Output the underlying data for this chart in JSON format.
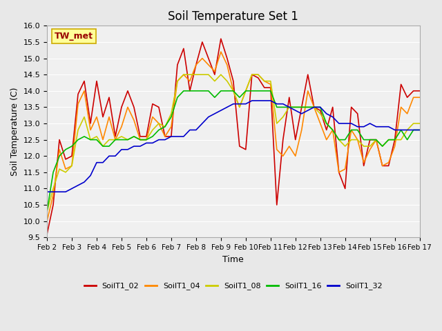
{
  "title": "Soil Temperature Set 1",
  "xlabel": "Time",
  "ylabel": "Soil Temperature (C)",
  "ylim": [
    9.5,
    16.0
  ],
  "annotation": "TW_met",
  "series": {
    "SoilT1_02": {
      "color": "#cc0000",
      "x": [
        2,
        2.25,
        2.5,
        2.75,
        3,
        3.25,
        3.5,
        3.75,
        4,
        4.25,
        4.5,
        4.75,
        5,
        5.25,
        5.5,
        5.75,
        6,
        6.25,
        6.5,
        6.75,
        7,
        7.25,
        7.5,
        7.75,
        8,
        8.25,
        8.5,
        8.75,
        9,
        9.25,
        9.5,
        9.75,
        10,
        10.25,
        10.5,
        10.75,
        11,
        11.25,
        11.5,
        11.75,
        12,
        12.25,
        12.5,
        12.75,
        13,
        13.25,
        13.5,
        13.75,
        14,
        14.25,
        14.5,
        14.75,
        15,
        15.25,
        15.5,
        15.75,
        16,
        16.25,
        16.5,
        16.75,
        17
      ],
      "y": [
        9.6,
        10.5,
        12.5,
        11.9,
        12.0,
        13.9,
        14.3,
        13.0,
        14.3,
        13.2,
        13.8,
        12.6,
        13.5,
        14.0,
        13.5,
        12.6,
        12.6,
        13.6,
        13.5,
        12.6,
        12.6,
        14.8,
        15.3,
        14.0,
        14.8,
        15.5,
        15.0,
        14.5,
        15.6,
        15.0,
        14.3,
        12.3,
        12.2,
        14.5,
        14.4,
        14.1,
        14.1,
        10.5,
        12.5,
        13.8,
        12.5,
        13.5,
        14.5,
        13.5,
        13.4,
        12.8,
        13.5,
        11.5,
        11.0,
        13.5,
        13.3,
        11.7,
        12.5,
        12.5,
        11.7,
        11.7,
        12.5,
        14.2,
        13.8,
        14.0,
        14.0
      ]
    },
    "SoilT1_04": {
      "color": "#ff8800",
      "x": [
        2,
        2.25,
        2.5,
        2.75,
        3,
        3.25,
        3.5,
        3.75,
        4,
        4.25,
        4.5,
        4.75,
        5,
        5.25,
        5.5,
        5.75,
        6,
        6.25,
        6.5,
        6.75,
        7,
        7.25,
        7.5,
        7.75,
        8,
        8.25,
        8.5,
        8.75,
        9,
        9.25,
        9.5,
        9.75,
        10,
        10.25,
        10.5,
        10.75,
        11,
        11.25,
        11.5,
        11.75,
        12,
        12.25,
        12.5,
        12.75,
        13,
        13.25,
        13.5,
        13.75,
        14,
        14.25,
        14.5,
        14.75,
        15,
        15.25,
        15.5,
        15.75,
        16,
        16.25,
        16.5,
        16.75,
        17
      ],
      "y": [
        10.0,
        10.8,
        12.2,
        11.6,
        11.7,
        13.6,
        14.0,
        12.8,
        13.2,
        12.5,
        13.2,
        12.5,
        12.9,
        13.5,
        13.1,
        12.5,
        12.5,
        13.2,
        13.0,
        12.6,
        12.9,
        14.3,
        14.5,
        14.3,
        14.8,
        15.0,
        14.8,
        14.6,
        15.2,
        14.8,
        14.0,
        13.5,
        14.0,
        14.5,
        14.5,
        14.3,
        14.2,
        12.2,
        12.0,
        12.3,
        12.0,
        12.8,
        14.0,
        13.5,
        13.0,
        12.5,
        12.8,
        11.5,
        11.6,
        12.8,
        12.5,
        11.8,
        12.2,
        12.5,
        11.7,
        11.8,
        12.3,
        13.5,
        13.3,
        13.8,
        13.8
      ]
    },
    "SoilT1_08": {
      "color": "#cccc00",
      "x": [
        2,
        2.25,
        2.5,
        2.75,
        3,
        3.25,
        3.5,
        3.75,
        4,
        4.25,
        4.5,
        4.75,
        5,
        5.25,
        5.5,
        5.75,
        6,
        6.25,
        6.5,
        6.75,
        7,
        7.25,
        7.5,
        7.75,
        8,
        8.25,
        8.5,
        8.75,
        9,
        9.25,
        9.5,
        9.75,
        10,
        10.25,
        10.5,
        10.75,
        11,
        11.25,
        11.5,
        11.75,
        12,
        12.25,
        12.5,
        12.75,
        13,
        13.25,
        13.5,
        13.75,
        14,
        14.25,
        14.5,
        14.75,
        15,
        15.25,
        15.5,
        15.75,
        16,
        16.25,
        16.5,
        16.75,
        17
      ],
      "y": [
        10.3,
        11.0,
        11.6,
        11.5,
        11.7,
        12.8,
        13.2,
        12.5,
        12.6,
        12.3,
        12.5,
        12.5,
        12.6,
        12.5,
        12.6,
        12.5,
        12.5,
        12.8,
        13.0,
        12.9,
        13.3,
        14.3,
        14.5,
        14.5,
        14.5,
        14.5,
        14.5,
        14.3,
        14.5,
        14.3,
        14.0,
        13.5,
        14.0,
        14.5,
        14.5,
        14.3,
        14.3,
        13.0,
        13.2,
        13.5,
        13.5,
        13.5,
        13.5,
        13.5,
        13.3,
        13.0,
        12.8,
        12.5,
        12.3,
        12.5,
        12.5,
        12.3,
        12.3,
        12.5,
        12.3,
        12.5,
        12.5,
        12.5,
        12.8,
        13.0,
        13.0
      ]
    },
    "SoilT1_16": {
      "color": "#00bb00",
      "x": [
        2,
        2.25,
        2.5,
        2.75,
        3,
        3.25,
        3.5,
        3.75,
        4,
        4.25,
        4.5,
        4.75,
        5,
        5.25,
        5.5,
        5.75,
        6,
        6.25,
        6.5,
        6.75,
        7,
        7.25,
        7.5,
        7.75,
        8,
        8.25,
        8.5,
        8.75,
        9,
        9.25,
        9.5,
        9.75,
        10,
        10.25,
        10.5,
        10.75,
        11,
        11.25,
        11.5,
        11.75,
        12,
        12.25,
        12.5,
        12.75,
        13,
        13.25,
        13.5,
        13.75,
        14,
        14.25,
        14.5,
        14.75,
        15,
        15.25,
        15.5,
        15.75,
        16,
        16.25,
        16.5,
        16.75,
        17
      ],
      "y": [
        10.3,
        11.5,
        12.0,
        12.2,
        12.3,
        12.5,
        12.6,
        12.5,
        12.5,
        12.3,
        12.3,
        12.5,
        12.5,
        12.5,
        12.6,
        12.5,
        12.5,
        12.6,
        12.8,
        12.9,
        13.2,
        13.8,
        14.0,
        14.0,
        14.0,
        14.0,
        14.0,
        13.8,
        14.0,
        14.0,
        14.0,
        13.8,
        14.0,
        14.0,
        14.0,
        14.0,
        14.0,
        13.5,
        13.5,
        13.5,
        13.5,
        13.5,
        13.5,
        13.5,
        13.5,
        13.0,
        12.8,
        12.5,
        12.5,
        12.8,
        12.8,
        12.5,
        12.5,
        12.5,
        12.3,
        12.5,
        12.5,
        12.8,
        12.5,
        12.8,
        12.8
      ]
    },
    "SoilT1_32": {
      "color": "#0000cc",
      "x": [
        2,
        2.25,
        2.5,
        2.75,
        3,
        3.25,
        3.5,
        3.75,
        4,
        4.25,
        4.5,
        4.75,
        5,
        5.25,
        5.5,
        5.75,
        6,
        6.25,
        6.5,
        6.75,
        7,
        7.25,
        7.5,
        7.75,
        8,
        8.25,
        8.5,
        8.75,
        9,
        9.25,
        9.5,
        9.75,
        10,
        10.25,
        10.5,
        10.75,
        11,
        11.25,
        11.5,
        11.75,
        12,
        12.25,
        12.5,
        12.75,
        13,
        13.25,
        13.5,
        13.75,
        14,
        14.25,
        14.5,
        14.75,
        15,
        15.25,
        15.5,
        15.75,
        16,
        16.25,
        16.5,
        16.75,
        17
      ],
      "y": [
        10.9,
        10.9,
        10.9,
        10.9,
        11.0,
        11.1,
        11.2,
        11.4,
        11.8,
        11.8,
        12.0,
        12.0,
        12.2,
        12.2,
        12.3,
        12.3,
        12.4,
        12.4,
        12.5,
        12.5,
        12.6,
        12.6,
        12.6,
        12.8,
        12.8,
        13.0,
        13.2,
        13.3,
        13.4,
        13.5,
        13.6,
        13.6,
        13.6,
        13.7,
        13.7,
        13.7,
        13.7,
        13.6,
        13.6,
        13.5,
        13.4,
        13.3,
        13.4,
        13.5,
        13.5,
        13.3,
        13.2,
        13.0,
        13.0,
        13.0,
        12.9,
        12.9,
        13.0,
        12.9,
        12.9,
        12.9,
        12.8,
        12.8,
        12.8,
        12.8,
        12.8
      ]
    }
  },
  "xticks": [
    2,
    3,
    4,
    5,
    6,
    7,
    8,
    9,
    10,
    11,
    12,
    13,
    14,
    15,
    16,
    17
  ],
  "xtick_labels": [
    "Feb 2",
    "Feb 3",
    "Feb 4",
    "Feb 5",
    "Feb 6",
    "Feb 7",
    "Feb 8",
    "Feb 9",
    "Feb 10",
    "Feb 11",
    "Feb 12",
    "Feb 13",
    "Feb 14",
    "Feb 15",
    "Feb 16",
    "Feb 17"
  ],
  "yticks": [
    9.5,
    10.0,
    10.5,
    11.0,
    11.5,
    12.0,
    12.5,
    13.0,
    13.5,
    14.0,
    14.5,
    15.0,
    15.5,
    16.0
  ],
  "legend_order": [
    "SoilT1_02",
    "SoilT1_04",
    "SoilT1_08",
    "SoilT1_16",
    "SoilT1_32"
  ],
  "bg_color": "#e8e8e8",
  "plot_bg_color": "#f0f0f0",
  "annotation_text": "TW_met",
  "annotation_color": "#990000",
  "annotation_bg": "#ffff99",
  "annotation_border": "#ccaa00"
}
